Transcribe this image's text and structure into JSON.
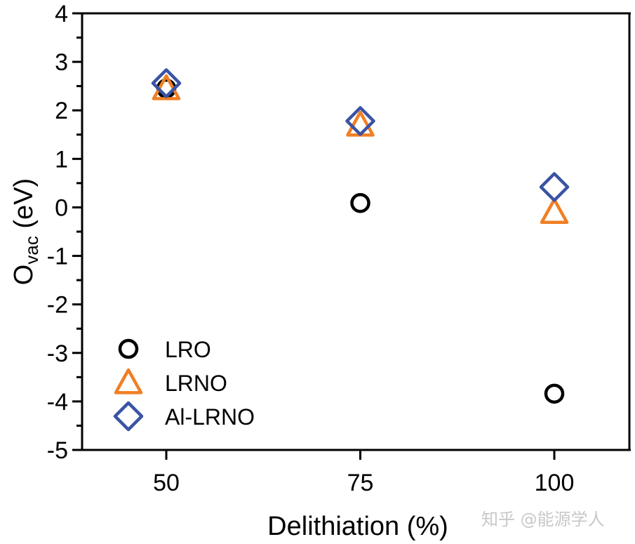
{
  "chart_data": {
    "type": "scatter",
    "title": "",
    "xlabel": "Delithiation (%)",
    "ylabel_main": "O",
    "ylabel_sub": "vac",
    "ylabel_unit": " (eV)",
    "x": [
      50,
      75,
      100
    ],
    "x_ticks": [
      "50",
      "75",
      "100"
    ],
    "xlim": [
      40,
      115
    ],
    "ylim": [
      -5,
      4
    ],
    "y_ticks": [
      "4",
      "3",
      "2",
      "1",
      "0",
      "-1",
      "-2",
      "-3",
      "-4",
      "-5"
    ],
    "y_tick_values": [
      4,
      3,
      2,
      1,
      0,
      -1,
      -2,
      -3,
      -4,
      -5
    ],
    "grid": false,
    "legend_position": "bottom-left",
    "series": [
      {
        "name": "LRO",
        "marker": "circle",
        "color": "#000000",
        "values": [
          2.45,
          0.09,
          -3.84
        ]
      },
      {
        "name": "LRNO",
        "marker": "triangle",
        "color": "#F07F24",
        "values": [
          2.45,
          1.7,
          -0.1
        ]
      },
      {
        "name": "Al-LRNO",
        "marker": "diamond",
        "color": "#3A53A4",
        "values": [
          2.56,
          1.78,
          0.42
        ]
      }
    ]
  },
  "watermark": "知乎 @能源学人"
}
